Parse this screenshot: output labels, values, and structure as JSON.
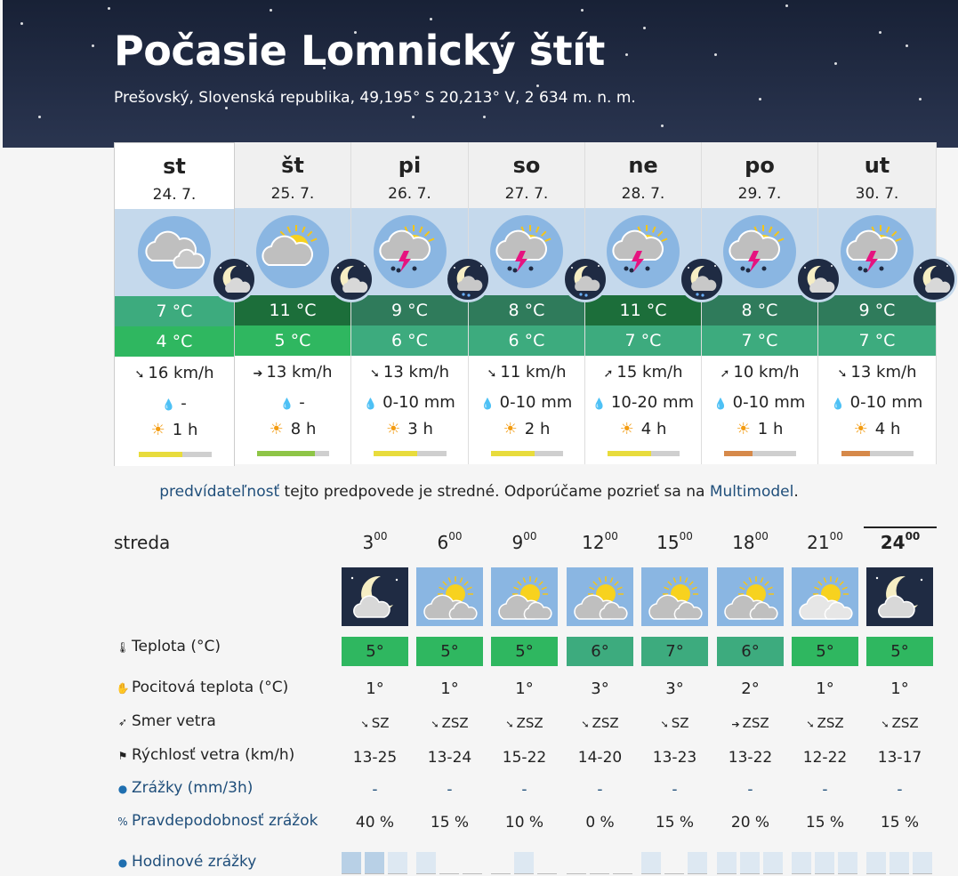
{
  "header": {
    "title": "Počasie Lomnický štít",
    "subtitle": "Prešovský, Slovenská republika, 49,195° S 20,213° V, 2 634 m. n. m."
  },
  "days": [
    {
      "name": "st",
      "date": "24. 7.",
      "tmax": "7 °C",
      "tmin": "4 °C",
      "wind_dir": "➘",
      "wind": "16 km/h",
      "precip": "-",
      "sun": "1 h",
      "tmax_color": "#3dab7e",
      "tmin_color": "#2fb760",
      "day_icon": "cloud",
      "night_icon": "moon-cloud",
      "bar_color": "#e8dc3c",
      "bar_level": 0.6
    },
    {
      "name": "št",
      "date": "25. 7.",
      "tmax": "11 °C",
      "tmin": "5 °C",
      "wind_dir": "➔",
      "wind": "13 km/h",
      "precip": "-",
      "sun": "8 h",
      "tmax_color": "#1c6e3a",
      "tmin_color": "#2fb760",
      "day_icon": "sun-cloud",
      "night_icon": "moon-cloud",
      "bar_color": "#8ec547",
      "bar_level": 0.8
    },
    {
      "name": "pi",
      "date": "26. 7.",
      "tmax": "9 °C",
      "tmin": "6 °C",
      "wind_dir": "➘",
      "wind": "13 km/h",
      "precip": "0-10 mm",
      "sun": "3 h",
      "tmax_color": "#2f7b5b",
      "tmin_color": "#3dab7e",
      "day_icon": "storm",
      "night_icon": "moon-rain",
      "bar_color": "#e8dc3c",
      "bar_level": 0.6
    },
    {
      "name": "so",
      "date": "27. 7.",
      "tmax": "8 °C",
      "tmin": "6 °C",
      "wind_dir": "➘",
      "wind": "11 km/h",
      "precip": "0-10 mm",
      "sun": "2 h",
      "tmax_color": "#2f7b5b",
      "tmin_color": "#3dab7e",
      "day_icon": "storm",
      "night_icon": "moon-rain",
      "bar_color": "#e8dc3c",
      "bar_level": 0.6
    },
    {
      "name": "ne",
      "date": "28. 7.",
      "tmax": "11 °C",
      "tmin": "7 °C",
      "wind_dir": "➚",
      "wind": "15 km/h",
      "precip": "10-20 mm",
      "sun": "4 h",
      "tmax_color": "#1c6e3a",
      "tmin_color": "#3dab7e",
      "day_icon": "storm",
      "night_icon": "moon-rain",
      "bar_color": "#e8dc3c",
      "bar_level": 0.6
    },
    {
      "name": "po",
      "date": "29. 7.",
      "tmax": "8 °C",
      "tmin": "7 °C",
      "wind_dir": "➚",
      "wind": "10 km/h",
      "precip": "0-10 mm",
      "sun": "1 h",
      "tmax_color": "#2f7b5b",
      "tmin_color": "#3dab7e",
      "day_icon": "storm",
      "night_icon": "moon-cloud",
      "bar_color": "#d6894a",
      "bar_level": 0.4
    },
    {
      "name": "ut",
      "date": "30. 7.",
      "tmax": "9 °C",
      "tmin": "7 °C",
      "wind_dir": "➘",
      "wind": "13 km/h",
      "precip": "0-10 mm",
      "sun": "4 h",
      "tmax_color": "#2f7b5b",
      "tmin_color": "#3dab7e",
      "day_icon": "storm",
      "night_icon": "moon-cloud",
      "bar_color": "#d6894a",
      "bar_level": 0.4
    }
  ],
  "note": {
    "link1": "predvídateľnosť",
    "text": " tejto predpovede je stredné. Odporúčame pozrieť sa na ",
    "link2": "Multimodel",
    "end": "."
  },
  "hourly": {
    "day_label": "streda",
    "labels": {
      "temp": "Teplota (°C)",
      "feels": "Pocitová teplota (°C)",
      "wind_dir": "Smer vetra",
      "wind_speed": "Rýchlosť vetra (km/h)",
      "precip": "Zrážky (mm/3h)",
      "prob": "Pravdepodobnosť zrážok",
      "hourly_precip": "Hodinové zrážky"
    },
    "icons": {
      "temp": "thermometer-icon",
      "feels": "hand-icon",
      "wind_dir": "wind-vane-icon",
      "wind_speed": "flag-icon",
      "precip": "drop-icon",
      "prob": "percent-icon",
      "hourly_precip": "drop-1h-icon"
    },
    "cols": [
      {
        "hour": "3",
        "min": "00",
        "icon": "night",
        "temp": "5°",
        "feels": "1°",
        "dir_arrow": "➘",
        "dir": "SZ",
        "speed": "13-25",
        "precip": "-",
        "prob": "40 %",
        "temp_color": "#2fb760"
      },
      {
        "hour": "6",
        "min": "00",
        "icon": "day",
        "temp": "5°",
        "feels": "1°",
        "dir_arrow": "➘",
        "dir": "ZSZ",
        "speed": "13-24",
        "precip": "-",
        "prob": "15 %",
        "temp_color": "#2fb760"
      },
      {
        "hour": "9",
        "min": "00",
        "icon": "day",
        "temp": "5°",
        "feels": "1°",
        "dir_arrow": "➘",
        "dir": "ZSZ",
        "speed": "15-22",
        "precip": "-",
        "prob": "10 %",
        "temp_color": "#2fb760"
      },
      {
        "hour": "12",
        "min": "00",
        "icon": "day",
        "temp": "6°",
        "feels": "3°",
        "dir_arrow": "➘",
        "dir": "ZSZ",
        "speed": "14-20",
        "precip": "-",
        "prob": "0 %",
        "temp_color": "#3dab7e"
      },
      {
        "hour": "15",
        "min": "00",
        "icon": "day",
        "temp": "7°",
        "feels": "3°",
        "dir_arrow": "➘",
        "dir": "SZ",
        "speed": "13-23",
        "precip": "-",
        "prob": "15 %",
        "temp_color": "#3dab7e"
      },
      {
        "hour": "18",
        "min": "00",
        "icon": "day",
        "temp": "6°",
        "feels": "2°",
        "dir_arrow": "➔",
        "dir": "ZSZ",
        "speed": "13-22",
        "precip": "-",
        "prob": "20 %",
        "temp_color": "#3dab7e"
      },
      {
        "hour": "21",
        "min": "00",
        "icon": "day-light",
        "temp": "5°",
        "feels": "1°",
        "dir_arrow": "➘",
        "dir": "ZSZ",
        "speed": "12-22",
        "precip": "-",
        "prob": "15 %",
        "temp_color": "#2fb760"
      },
      {
        "hour": "24",
        "min": "00",
        "icon": "night",
        "temp": "5°",
        "feels": "1°",
        "dir_arrow": "➘",
        "dir": "ZSZ",
        "speed": "13-17",
        "precip": "-",
        "prob": "15 %",
        "temp_color": "#2fb760",
        "current": true
      }
    ]
  }
}
